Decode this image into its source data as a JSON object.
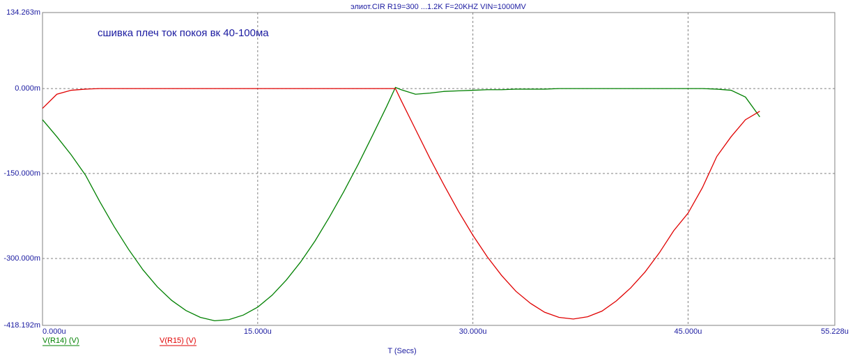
{
  "chart_data": {
    "type": "line",
    "title": "элиот.CIR R19=300 ...1.2K F=20KHZ VIN=1000MV",
    "annotation": "сшивка плеч ток покоя вк 40-100ма",
    "x_label": "T (Secs)",
    "x": [
      0,
      1,
      2,
      3,
      4,
      5,
      6,
      7,
      8,
      9,
      10,
      11,
      12,
      13,
      14,
      15,
      16,
      17,
      18,
      19,
      20,
      21,
      22,
      23,
      24,
      24.6,
      25,
      26,
      27,
      28,
      29,
      30,
      31,
      32,
      33,
      34,
      35,
      36,
      37,
      38,
      39,
      40,
      41,
      42,
      43,
      44,
      45,
      46,
      47,
      48,
      49,
      50
    ],
    "series": [
      {
        "name": "V(R14) (V)",
        "color": "#008000",
        "values": [
          -55,
          -85,
          -117,
          -153,
          -200,
          -244,
          -284,
          -320,
          -350,
          -374,
          -392,
          -404,
          -410,
          -408,
          -400,
          -386,
          -365,
          -338,
          -306,
          -269,
          -227,
          -182,
          -134,
          -83,
          -31,
          2,
          -2,
          -10,
          -8,
          -5,
          -4,
          -3,
          -2,
          -2,
          -1,
          -1,
          -1,
          0,
          0,
          0,
          0,
          0,
          0,
          0,
          0,
          0,
          0,
          0,
          -1,
          -3,
          -15,
          -50
        ]
      },
      {
        "name": "V(R15) (V)",
        "color": "#e00000",
        "values": [
          -35,
          -10,
          -3,
          -1,
          0,
          0,
          0,
          0,
          0,
          0,
          0,
          0,
          0,
          0,
          0,
          0,
          0,
          0,
          0,
          0,
          0,
          0,
          0,
          0,
          0,
          0,
          -21,
          -72,
          -123,
          -171,
          -217,
          -259,
          -297,
          -330,
          -358,
          -379,
          -395,
          -404,
          -407,
          -403,
          -393,
          -375,
          -352,
          -324,
          -290,
          -251,
          -220,
          -175,
          -120,
          -85,
          -55,
          -40
        ]
      }
    ],
    "xlim": [
      0,
      55.228
    ],
    "xticks": [
      {
        "value": 0,
        "label": "0.000u"
      },
      {
        "value": 15,
        "label": "15.000u"
      },
      {
        "value": 30,
        "label": "30.000u"
      },
      {
        "value": 45,
        "label": "45.000u"
      },
      {
        "value": 55.228,
        "label": "55.228u"
      }
    ],
    "ylim": [
      -418.192,
      134.263
    ],
    "yticks": [
      {
        "value": 134.263,
        "label": "134.263m"
      },
      {
        "value": 0,
        "label": "0.000m"
      },
      {
        "value": -150,
        "label": "-150.000m"
      },
      {
        "value": -300,
        "label": "-300.000m"
      },
      {
        "value": -418.192,
        "label": "-418.192m"
      }
    ],
    "grid": true
  }
}
